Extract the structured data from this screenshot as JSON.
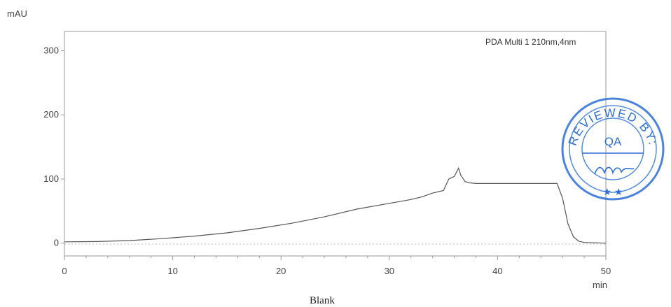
{
  "chart_data": {
    "type": "line",
    "y_unit": "mAU",
    "x_unit": "min",
    "legend": "PDA Multi 1 210nm,4nm",
    "caption": "Blank",
    "xlim": [
      0,
      50
    ],
    "ylim": [
      -20,
      330
    ],
    "x_ticks": [
      0,
      10,
      20,
      30,
      40,
      50
    ],
    "y_ticks": [
      0,
      100,
      200,
      300
    ],
    "grid": false,
    "legend_position": "top-right",
    "series": [
      {
        "x": [
          0,
          3,
          6,
          9,
          12,
          15,
          18,
          21,
          24,
          27,
          30,
          32,
          33,
          34,
          35,
          35.5,
          36,
          36.4,
          36.6,
          37,
          37.4,
          38,
          40,
          42,
          44,
          45.5,
          46,
          46.5,
          47,
          47.5,
          48,
          50
        ],
        "y": [
          2,
          2.5,
          4,
          7,
          11,
          16,
          23,
          31,
          41,
          53,
          62,
          68,
          72,
          78,
          82,
          100,
          104,
          117,
          106,
          96,
          94,
          93,
          93,
          93,
          93,
          93,
          70,
          30,
          10,
          3,
          1,
          0
        ]
      }
    ],
    "line_color": "#555555"
  },
  "stamp": {
    "arc_text": "REVIEWED BY:",
    "center_text": "QA",
    "bottom_text": "★ ★",
    "color": "#2b6fd6"
  }
}
